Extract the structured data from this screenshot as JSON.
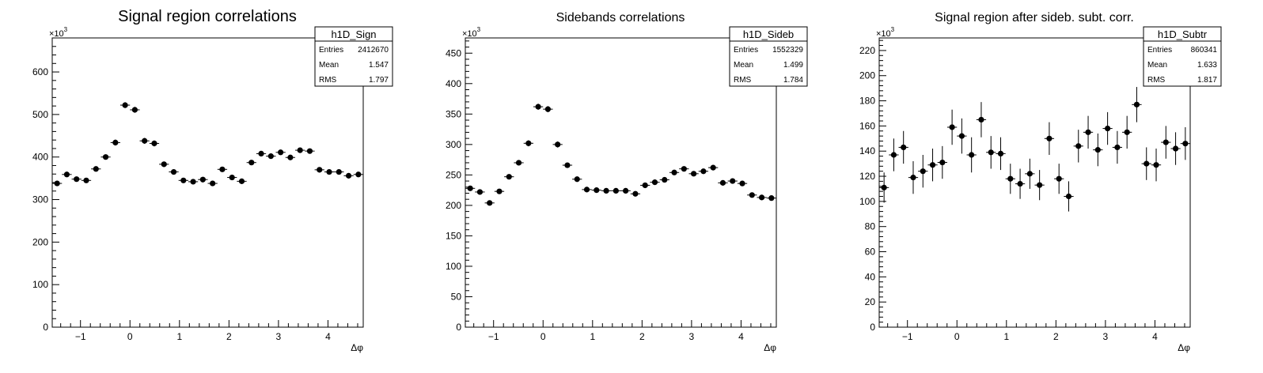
{
  "chart_data": [
    {
      "type": "scatter",
      "title": "Signal region correlations",
      "xlabel": "Δφ",
      "ylabel": "",
      "xlim": [
        -1.5708,
        4.7124
      ],
      "ylim": [
        0,
        680
      ],
      "y_multiplier_label": "×10",
      "y_multiplier_exp": "3",
      "x_ticks": [
        -1,
        0,
        1,
        2,
        3,
        4
      ],
      "x_tick_labels": [
        "−1",
        "0",
        "1",
        "2",
        "3",
        "4"
      ],
      "y_ticks": [
        0,
        100,
        200,
        300,
        400,
        500,
        600
      ],
      "y_tick_labels": [
        "0",
        "100",
        "200",
        "300",
        "400",
        "500",
        "600"
      ],
      "stats": {
        "name": "h1D_Sign",
        "rows": [
          {
            "label": "Entries",
            "value": "2412670"
          },
          {
            "label": "Mean",
            "value": "1.547"
          },
          {
            "label": "RMS",
            "value": "1.797"
          }
        ]
      },
      "x": [
        -1.4725,
        -1.2762,
        -1.0799,
        -0.8836,
        -0.6872,
        -0.4909,
        -0.2945,
        -0.0982,
        0.0982,
        0.2945,
        0.4909,
        0.6872,
        0.8836,
        1.0799,
        1.2762,
        1.4725,
        1.669,
        1.8653,
        2.0617,
        2.258,
        2.4544,
        2.6507,
        2.8471,
        3.0434,
        3.2398,
        3.4361,
        3.6325,
        3.8288,
        4.0252,
        4.2215,
        4.4179,
        4.6142
      ],
      "values": [
        338,
        359,
        348,
        345,
        372,
        400,
        434,
        522,
        511,
        438,
        432,
        383,
        365,
        345,
        342,
        347,
        338,
        371,
        352,
        343,
        387,
        408,
        402,
        411,
        399,
        416,
        414,
        370,
        365,
        365,
        356,
        359
      ],
      "errors": [
        6,
        6,
        6,
        6,
        6,
        6,
        7,
        7,
        7,
        7,
        7,
        6,
        6,
        6,
        6,
        6,
        6,
        6,
        6,
        6,
        6,
        6,
        6,
        6,
        6,
        6,
        6,
        6,
        6,
        6,
        6,
        6
      ]
    },
    {
      "type": "scatter",
      "title": "Sidebands correlations",
      "xlabel": "Δφ",
      "ylabel": "",
      "xlim": [
        -1.5708,
        4.7124
      ],
      "ylim": [
        0,
        475
      ],
      "y_multiplier_label": "×10",
      "y_multiplier_exp": "3",
      "x_ticks": [
        -1,
        0,
        1,
        2,
        3,
        4
      ],
      "x_tick_labels": [
        "−1",
        "0",
        "1",
        "2",
        "3",
        "4"
      ],
      "y_ticks": [
        0,
        50,
        100,
        150,
        200,
        250,
        300,
        350,
        400,
        450
      ],
      "y_tick_labels": [
        "0",
        "50",
        "100",
        "150",
        "200",
        "250",
        "300",
        "350",
        "400",
        "450"
      ],
      "stats": {
        "name": "h1D_Sideb",
        "rows": [
          {
            "label": "Entries",
            "value": "1552329"
          },
          {
            "label": "Mean",
            "value": "1.499"
          },
          {
            "label": "RMS",
            "value": "1.784"
          }
        ]
      },
      "x": [
        -1.4725,
        -1.2762,
        -1.0799,
        -0.8836,
        -0.6872,
        -0.4909,
        -0.2945,
        -0.0982,
        0.0982,
        0.2945,
        0.4909,
        0.6872,
        0.8836,
        1.0799,
        1.2762,
        1.4725,
        1.669,
        1.8653,
        2.0617,
        2.258,
        2.4544,
        2.6507,
        2.8471,
        3.0434,
        3.2398,
        3.4361,
        3.6325,
        3.8288,
        4.0252,
        4.2215,
        4.4179,
        4.6142
      ],
      "values": [
        228,
        222,
        204,
        223,
        247,
        270,
        302,
        362,
        358,
        300,
        266,
        243,
        226,
        225,
        224,
        224,
        224,
        219,
        233,
        238,
        242,
        254,
        260,
        252,
        256,
        262,
        237,
        240,
        236,
        217,
        213,
        212
      ],
      "errors": [
        4,
        4,
        4,
        4,
        4,
        4,
        5,
        5,
        5,
        5,
        4,
        4,
        4,
        4,
        4,
        4,
        4,
        4,
        4,
        4,
        4,
        4,
        4,
        4,
        4,
        4,
        4,
        4,
        4,
        4,
        4,
        4
      ]
    },
    {
      "type": "scatter",
      "title": "Signal region after sideb. subt. corr.",
      "xlabel": "Δφ",
      "ylabel": "",
      "xlim": [
        -1.5708,
        4.7124
      ],
      "ylim": [
        0,
        230
      ],
      "y_multiplier_label": "×10",
      "y_multiplier_exp": "3",
      "x_ticks": [
        -1,
        0,
        1,
        2,
        3,
        4
      ],
      "x_tick_labels": [
        "−1",
        "0",
        "1",
        "2",
        "3",
        "4"
      ],
      "y_ticks": [
        0,
        20,
        40,
        60,
        80,
        100,
        120,
        140,
        160,
        180,
        200,
        220
      ],
      "y_tick_labels": [
        "0",
        "20",
        "40",
        "60",
        "80",
        "100",
        "120",
        "140",
        "160",
        "180",
        "200",
        "220"
      ],
      "stats": {
        "name": "h1D_Subtr",
        "rows": [
          {
            "label": "Entries",
            "value": "860341"
          },
          {
            "label": "Mean",
            "value": "1.633"
          },
          {
            "label": "RMS",
            "value": "1.817"
          }
        ]
      },
      "x": [
        -1.4725,
        -1.2762,
        -1.0799,
        -0.8836,
        -0.6872,
        -0.4909,
        -0.2945,
        -0.0982,
        0.0982,
        0.2945,
        0.4909,
        0.6872,
        0.8836,
        1.0799,
        1.2762,
        1.4725,
        1.669,
        1.8653,
        2.0617,
        2.258,
        2.4544,
        2.6507,
        2.8471,
        3.0434,
        3.2398,
        3.4361,
        3.6325,
        3.8288,
        4.0252,
        4.2215,
        4.4179,
        4.6142
      ],
      "values": [
        111,
        137,
        143,
        119,
        124,
        129,
        131,
        159,
        152,
        137,
        165,
        139,
        138,
        118,
        114,
        122,
        113,
        150,
        118,
        104,
        144,
        155,
        141,
        158,
        143,
        155,
        177,
        130,
        129,
        147,
        142,
        146
      ],
      "errors": [
        12,
        13,
        13,
        13,
        13,
        13,
        13,
        14,
        14,
        14,
        14,
        13,
        13,
        12,
        12,
        12,
        12,
        13,
        12,
        12,
        13,
        13,
        13,
        13,
        13,
        13,
        14,
        13,
        13,
        13,
        13,
        13
      ]
    }
  ]
}
